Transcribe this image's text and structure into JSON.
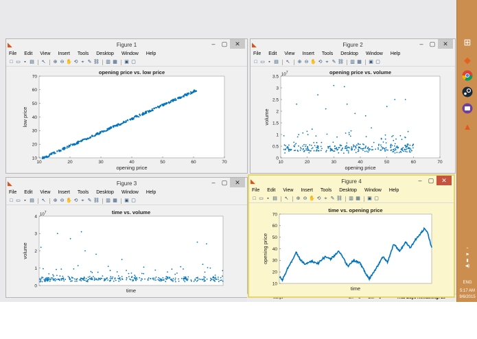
{
  "desktop": {
    "status_left": "script",
    "status_ln": "Ln",
    "status_ln_value": "6",
    "status_col": "Col",
    "status_col_value": "1",
    "trial_text": "Trial Days Remaining: 29"
  },
  "taskbar": {
    "items": [
      "windows-start",
      "matlab-orange",
      "chrome",
      "steam",
      "purple-app",
      "matlab"
    ],
    "language": "ENG",
    "time": "5:17 AM",
    "date": "9/6/2015"
  },
  "menu_labels": [
    "File",
    "Edit",
    "View",
    "Insert",
    "Tools",
    "Desktop",
    "Window",
    "Help"
  ],
  "windows": [
    {
      "title": "Figure 1",
      "active": false
    },
    {
      "title": "Figure 2",
      "active": false
    },
    {
      "title": "Figure 3",
      "active": false
    },
    {
      "title": "Figure 4",
      "active": true
    }
  ],
  "chart_data": [
    {
      "type": "scatter",
      "title": "opening price vs. low price",
      "xlabel": "opening price",
      "ylabel": "low price",
      "xlim": [
        10,
        70
      ],
      "ylim": [
        10,
        70
      ],
      "xticks": [
        10,
        20,
        30,
        40,
        50,
        60,
        70
      ],
      "yticks": [
        10,
        20,
        30,
        40,
        50,
        60,
        70
      ],
      "color": "#0072bd",
      "description_points": [
        [
          11,
          10.7
        ],
        [
          20,
          19.4
        ],
        [
          30,
          29.2
        ],
        [
          40,
          39.1
        ],
        [
          50,
          48.8
        ],
        [
          60,
          59
        ]
      ]
    },
    {
      "type": "scatter",
      "title": "opening price vs. volume",
      "xlabel": "opening price",
      "ylabel": "volume",
      "exponent_label": "10",
      "exponent_power": "7",
      "xlim": [
        10,
        70
      ],
      "ylim": [
        0,
        3.5
      ],
      "xticks": [
        10,
        20,
        30,
        40,
        50,
        60,
        70
      ],
      "yticks": [
        "0",
        "0.5",
        "1",
        "1.5",
        "2",
        "2.5",
        "3",
        "3.5"
      ],
      "color": "#0072bd",
      "outliers": [
        [
          16,
          2.3
        ],
        [
          24,
          2.7
        ],
        [
          27,
          2.1
        ],
        [
          30,
          3.1
        ],
        [
          34,
          3.05
        ],
        [
          35,
          2.3
        ],
        [
          38,
          1.9
        ],
        [
          50,
          2.2
        ],
        [
          53,
          2.5
        ],
        [
          42,
          1.8
        ],
        [
          57,
          2.5
        ]
      ]
    },
    {
      "type": "scatter",
      "title": "time vs. volume",
      "xlabel": "time",
      "ylabel": "volume",
      "exponent_label": "10",
      "exponent_power": "7",
      "ylim": [
        0,
        4
      ],
      "yticks": [
        "0",
        "1",
        "2",
        "3",
        "4"
      ],
      "color": "#0072bd",
      "outliers": [
        [
          0.01,
          2.2
        ],
        [
          0.1,
          3.0
        ],
        [
          0.17,
          2.7
        ],
        [
          0.23,
          3.1
        ],
        [
          0.25,
          2.0
        ],
        [
          0.31,
          1.8
        ],
        [
          0.45,
          1.5
        ],
        [
          0.86,
          2.5
        ],
        [
          0.91,
          2.4
        ]
      ]
    },
    {
      "type": "line",
      "title": "time vs. opening price",
      "xlabel": "time",
      "ylabel": "opening price",
      "ylim": [
        10,
        70
      ],
      "yticks": [
        10,
        20,
        30,
        40,
        50,
        60,
        70
      ],
      "color": "#0072bd",
      "anchors": [
        [
          0,
          16
        ],
        [
          0.02,
          13
        ],
        [
          0.05,
          22
        ],
        [
          0.09,
          31
        ],
        [
          0.11,
          37
        ],
        [
          0.14,
          30
        ],
        [
          0.17,
          27
        ],
        [
          0.21,
          29
        ],
        [
          0.25,
          27
        ],
        [
          0.3,
          33
        ],
        [
          0.34,
          31
        ],
        [
          0.39,
          38
        ],
        [
          0.42,
          32
        ],
        [
          0.45,
          25
        ],
        [
          0.49,
          30
        ],
        [
          0.53,
          28
        ],
        [
          0.56,
          20
        ],
        [
          0.59,
          14
        ],
        [
          0.63,
          22
        ],
        [
          0.68,
          33
        ],
        [
          0.71,
          28
        ],
        [
          0.75,
          44
        ],
        [
          0.79,
          38
        ],
        [
          0.83,
          46
        ],
        [
          0.86,
          41
        ],
        [
          0.89,
          47
        ],
        [
          0.92,
          52
        ],
        [
          0.95,
          57
        ],
        [
          0.97,
          55
        ],
        [
          1.0,
          41
        ]
      ]
    }
  ]
}
